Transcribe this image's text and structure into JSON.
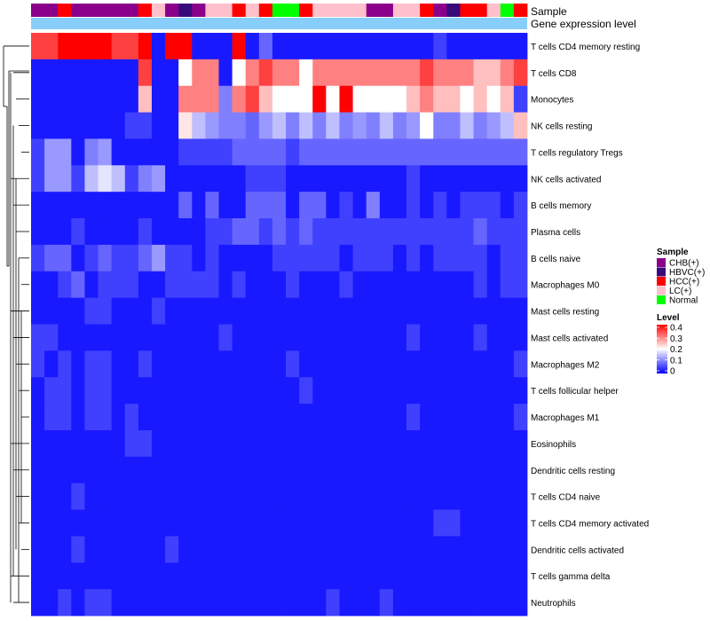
{
  "chart_data": {
    "type": "heatmap",
    "annotation_tracks": [
      "Sample",
      "Gene expression level"
    ],
    "rows": [
      "T cells CD4 memory resting",
      "T cells CD8",
      "Monocytes",
      "NK cells resting",
      "T cells regulatory  Tregs",
      "NK cells activated",
      "B cells memory",
      "Plasma cells",
      "B cells naive",
      "Macrophages M0",
      "Mast cells resting",
      "Mast cells activated",
      "Macrophages M2",
      "T cells follicular helper",
      "Macrophages M1",
      "Eosinophils",
      "Dendritic cells resting",
      "T cells CD4 naive",
      "T cells CD4 memory activated",
      "Dendritic cells activated",
      "T cells gamma delta",
      "Neutrophils"
    ],
    "sample_groups": [
      "CHB",
      "CHB",
      "HCC",
      "CHB",
      "CHB",
      "CHB",
      "CHB",
      "CHB",
      "HCC",
      "LC",
      "CHB",
      "HBVC",
      "CHB",
      "LC",
      "LC",
      "HCC",
      "LC",
      "HCC",
      "Normal",
      "Normal",
      "HCC",
      "LC",
      "LC",
      "LC",
      "LC",
      "CHB",
      "CHB",
      "LC",
      "LC",
      "HCC",
      "CHB",
      "HBVC",
      "HCC",
      "HCC",
      "LC",
      "Normal",
      "HCC"
    ],
    "values": [
      [
        0.35,
        0.35,
        0.4,
        0.4,
        0.4,
        0.4,
        0.35,
        0.35,
        0.4,
        0.02,
        0.4,
        0.4,
        0.02,
        0.02,
        0.02,
        0.4,
        0.02,
        0.08,
        0.02,
        0.02,
        0.02,
        0.02,
        0.02,
        0.02,
        0.02,
        0.02,
        0.02,
        0.02,
        0.02,
        0.02,
        0.05,
        0.02,
        0.02,
        0.02,
        0.02,
        0.02,
        0.02
      ],
      [
        0.02,
        0.02,
        0.02,
        0.02,
        0.02,
        0.02,
        0.02,
        0.02,
        0.35,
        0.02,
        0.02,
        0.2,
        0.3,
        0.3,
        0.02,
        0.2,
        0.3,
        0.35,
        0.3,
        0.3,
        0.2,
        0.3,
        0.3,
        0.3,
        0.3,
        0.3,
        0.3,
        0.3,
        0.3,
        0.35,
        0.3,
        0.3,
        0.3,
        0.25,
        0.25,
        0.3,
        0.35
      ],
      [
        0.02,
        0.02,
        0.02,
        0.02,
        0.02,
        0.02,
        0.02,
        0.02,
        0.25,
        0.02,
        0.02,
        0.3,
        0.3,
        0.3,
        0.1,
        0.3,
        0.35,
        0.25,
        0.2,
        0.2,
        0.2,
        0.4,
        0.2,
        0.4,
        0.2,
        0.2,
        0.2,
        0.2,
        0.25,
        0.3,
        0.25,
        0.25,
        0.2,
        0.25,
        0.2,
        0.25,
        0.05
      ],
      [
        0.02,
        0.02,
        0.02,
        0.02,
        0.02,
        0.02,
        0.02,
        0.05,
        0.05,
        0.02,
        0.02,
        0.22,
        0.15,
        0.12,
        0.1,
        0.1,
        0.08,
        0.12,
        0.15,
        0.1,
        0.15,
        0.1,
        0.15,
        0.1,
        0.12,
        0.1,
        0.15,
        0.1,
        0.12,
        0.2,
        0.1,
        0.1,
        0.15,
        0.1,
        0.12,
        0.15,
        0.25
      ],
      [
        0.05,
        0.12,
        0.12,
        0.02,
        0.1,
        0.12,
        0.02,
        0.02,
        0.02,
        0.02,
        0.02,
        0.05,
        0.05,
        0.05,
        0.05,
        0.08,
        0.08,
        0.08,
        0.08,
        0.05,
        0.08,
        0.08,
        0.08,
        0.08,
        0.08,
        0.08,
        0.08,
        0.08,
        0.08,
        0.08,
        0.08,
        0.08,
        0.08,
        0.08,
        0.08,
        0.08,
        0.08
      ],
      [
        0.05,
        0.12,
        0.12,
        0.05,
        0.15,
        0.18,
        0.15,
        0.05,
        0.1,
        0.12,
        0.02,
        0.02,
        0.02,
        0.02,
        0.02,
        0.02,
        0.05,
        0.05,
        0.05,
        0.02,
        0.02,
        0.02,
        0.02,
        0.02,
        0.02,
        0.02,
        0.02,
        0.02,
        0.05,
        0.02,
        0.02,
        0.02,
        0.02,
        0.02,
        0.02,
        0.02,
        0.02
      ],
      [
        0.02,
        0.02,
        0.02,
        0.02,
        0.02,
        0.02,
        0.02,
        0.02,
        0.02,
        0.02,
        0.02,
        0.08,
        0.02,
        0.08,
        0.02,
        0.02,
        0.08,
        0.08,
        0.08,
        0.02,
        0.08,
        0.08,
        0.02,
        0.05,
        0.02,
        0.1,
        0.02,
        0.02,
        0.05,
        0.02,
        0.05,
        0.02,
        0.05,
        0.05,
        0.05,
        0.02,
        0.05
      ],
      [
        0.02,
        0.02,
        0.02,
        0.05,
        0.02,
        0.02,
        0.02,
        0.02,
        0.05,
        0.02,
        0.02,
        0.02,
        0.02,
        0.05,
        0.05,
        0.08,
        0.08,
        0.05,
        0.08,
        0.05,
        0.08,
        0.05,
        0.05,
        0.05,
        0.05,
        0.05,
        0.05,
        0.05,
        0.05,
        0.05,
        0.05,
        0.05,
        0.05,
        0.08,
        0.05,
        0.05,
        0.05
      ],
      [
        0.05,
        0.08,
        0.08,
        0.02,
        0.05,
        0.08,
        0.05,
        0.05,
        0.08,
        0.12,
        0.05,
        0.05,
        0.02,
        0.05,
        0.02,
        0.02,
        0.02,
        0.02,
        0.05,
        0.05,
        0.05,
        0.05,
        0.05,
        0.02,
        0.05,
        0.05,
        0.05,
        0.02,
        0.05,
        0.02,
        0.05,
        0.05,
        0.05,
        0.05,
        0.02,
        0.05,
        0.05
      ],
      [
        0.02,
        0.02,
        0.05,
        0.08,
        0.02,
        0.05,
        0.05,
        0.05,
        0.02,
        0.02,
        0.05,
        0.05,
        0.05,
        0.05,
        0.02,
        0.05,
        0.02,
        0.02,
        0.02,
        0.05,
        0.02,
        0.02,
        0.02,
        0.05,
        0.02,
        0.02,
        0.02,
        0.02,
        0.02,
        0.02,
        0.02,
        0.02,
        0.02,
        0.05,
        0.02,
        0.05,
        0.05
      ],
      [
        0.02,
        0.02,
        0.02,
        0.02,
        0.05,
        0.05,
        0.02,
        0.02,
        0.02,
        0.05,
        0.02,
        0.02,
        0.02,
        0.02,
        0.02,
        0.02,
        0.02,
        0.02,
        0.02,
        0.02,
        0.02,
        0.02,
        0.02,
        0.02,
        0.02,
        0.02,
        0.02,
        0.02,
        0.02,
        0.02,
        0.02,
        0.02,
        0.02,
        0.02,
        0.02,
        0.02,
        0.02
      ],
      [
        0.05,
        0.05,
        0.02,
        0.02,
        0.02,
        0.02,
        0.02,
        0.02,
        0.02,
        0.02,
        0.02,
        0.02,
        0.02,
        0.02,
        0.05,
        0.02,
        0.02,
        0.02,
        0.02,
        0.02,
        0.02,
        0.02,
        0.02,
        0.02,
        0.02,
        0.02,
        0.02,
        0.02,
        0.05,
        0.02,
        0.02,
        0.02,
        0.02,
        0.05,
        0.02,
        0.02,
        0.02
      ],
      [
        0.05,
        0.02,
        0.05,
        0.02,
        0.05,
        0.05,
        0.02,
        0.02,
        0.05,
        0.02,
        0.02,
        0.02,
        0.02,
        0.02,
        0.02,
        0.02,
        0.02,
        0.02,
        0.02,
        0.05,
        0.02,
        0.02,
        0.02,
        0.02,
        0.02,
        0.02,
        0.02,
        0.02,
        0.02,
        0.02,
        0.02,
        0.02,
        0.02,
        0.02,
        0.02,
        0.02,
        0.05
      ],
      [
        0.02,
        0.05,
        0.05,
        0.02,
        0.05,
        0.05,
        0.02,
        0.02,
        0.02,
        0.02,
        0.02,
        0.02,
        0.02,
        0.02,
        0.02,
        0.02,
        0.02,
        0.02,
        0.02,
        0.02,
        0.05,
        0.02,
        0.02,
        0.02,
        0.02,
        0.02,
        0.02,
        0.02,
        0.02,
        0.02,
        0.02,
        0.02,
        0.02,
        0.02,
        0.02,
        0.02,
        0.02
      ],
      [
        0.02,
        0.05,
        0.05,
        0.02,
        0.05,
        0.05,
        0.02,
        0.05,
        0.02,
        0.02,
        0.02,
        0.02,
        0.02,
        0.02,
        0.02,
        0.02,
        0.02,
        0.02,
        0.02,
        0.02,
        0.02,
        0.02,
        0.02,
        0.02,
        0.02,
        0.02,
        0.02,
        0.02,
        0.05,
        0.02,
        0.02,
        0.02,
        0.02,
        0.02,
        0.02,
        0.02,
        0.05
      ],
      [
        0.02,
        0.02,
        0.02,
        0.02,
        0.02,
        0.02,
        0.02,
        0.05,
        0.05,
        0.02,
        0.02,
        0.02,
        0.02,
        0.02,
        0.02,
        0.02,
        0.02,
        0.02,
        0.02,
        0.02,
        0.02,
        0.02,
        0.02,
        0.02,
        0.02,
        0.02,
        0.02,
        0.02,
        0.02,
        0.02,
        0.02,
        0.02,
        0.02,
        0.02,
        0.02,
        0.02,
        0.02
      ],
      [
        0.02,
        0.02,
        0.02,
        0.02,
        0.02,
        0.02,
        0.02,
        0.02,
        0.02,
        0.02,
        0.02,
        0.02,
        0.02,
        0.02,
        0.02,
        0.02,
        0.02,
        0.02,
        0.02,
        0.02,
        0.02,
        0.02,
        0.02,
        0.02,
        0.02,
        0.02,
        0.02,
        0.02,
        0.02,
        0.02,
        0.02,
        0.02,
        0.02,
        0.02,
        0.02,
        0.02,
        0.02
      ],
      [
        0.02,
        0.02,
        0.02,
        0.05,
        0.02,
        0.02,
        0.02,
        0.02,
        0.02,
        0.02,
        0.02,
        0.02,
        0.02,
        0.02,
        0.02,
        0.02,
        0.02,
        0.02,
        0.02,
        0.02,
        0.02,
        0.02,
        0.02,
        0.02,
        0.02,
        0.02,
        0.02,
        0.02,
        0.02,
        0.02,
        0.02,
        0.02,
        0.02,
        0.02,
        0.02,
        0.02,
        0.02
      ],
      [
        0.02,
        0.02,
        0.02,
        0.02,
        0.02,
        0.02,
        0.02,
        0.02,
        0.02,
        0.02,
        0.02,
        0.02,
        0.02,
        0.02,
        0.02,
        0.02,
        0.02,
        0.02,
        0.02,
        0.02,
        0.02,
        0.02,
        0.02,
        0.02,
        0.02,
        0.02,
        0.02,
        0.02,
        0.02,
        0.02,
        0.05,
        0.05,
        0.02,
        0.02,
        0.02,
        0.02,
        0.02
      ],
      [
        0.02,
        0.02,
        0.02,
        0.05,
        0.02,
        0.02,
        0.02,
        0.02,
        0.02,
        0.02,
        0.05,
        0.02,
        0.02,
        0.02,
        0.02,
        0.02,
        0.02,
        0.02,
        0.02,
        0.02,
        0.02,
        0.02,
        0.02,
        0.02,
        0.02,
        0.02,
        0.02,
        0.02,
        0.02,
        0.02,
        0.02,
        0.02,
        0.02,
        0.02,
        0.02,
        0.02,
        0.02
      ],
      [
        0.02,
        0.02,
        0.02,
        0.02,
        0.02,
        0.02,
        0.02,
        0.02,
        0.02,
        0.02,
        0.02,
        0.02,
        0.02,
        0.02,
        0.02,
        0.02,
        0.02,
        0.02,
        0.02,
        0.02,
        0.02,
        0.02,
        0.02,
        0.02,
        0.02,
        0.02,
        0.02,
        0.02,
        0.02,
        0.02,
        0.02,
        0.02,
        0.02,
        0.02,
        0.02,
        0.02,
        0.02
      ],
      [
        0.02,
        0.02,
        0.05,
        0.02,
        0.05,
        0.05,
        0.02,
        0.02,
        0.02,
        0.02,
        0.02,
        0.02,
        0.02,
        0.02,
        0.02,
        0.02,
        0.02,
        0.02,
        0.02,
        0.02,
        0.02,
        0.02,
        0.05,
        0.02,
        0.02,
        0.02,
        0.05,
        0.02,
        0.02,
        0.02,
        0.02,
        0.02,
        0.02,
        0.02,
        0.02,
        0.02,
        0.02
      ]
    ],
    "color_scale": {
      "min": 0,
      "max": 0.4,
      "low": "#0000FF",
      "mid": "#FFFFFF",
      "high": "#FF0000",
      "midpoint": 0.2
    },
    "sample_legend": {
      "title": "Sample",
      "items": [
        {
          "key": "CHB",
          "label": "CHB(+)",
          "color": "#8B008B"
        },
        {
          "key": "HBVC",
          "label": "HBVC(+)",
          "color": "#3A0A7A"
        },
        {
          "key": "HCC",
          "label": "HCC(+)",
          "color": "#FF0000"
        },
        {
          "key": "LC",
          "label": "LC(+)",
          "color": "#FFC0CB"
        },
        {
          "key": "Normal",
          "label": "Normal",
          "color": "#00FF00"
        }
      ]
    },
    "gene_expression_color": "#87CEFA",
    "level_legend": {
      "title": "Level",
      "ticks": [
        0,
        0.1,
        0.2,
        0.3,
        0.4
      ],
      "tick_labels": [
        "0",
        "0.1",
        "0.2",
        "0.3",
        "0.4"
      ]
    }
  }
}
